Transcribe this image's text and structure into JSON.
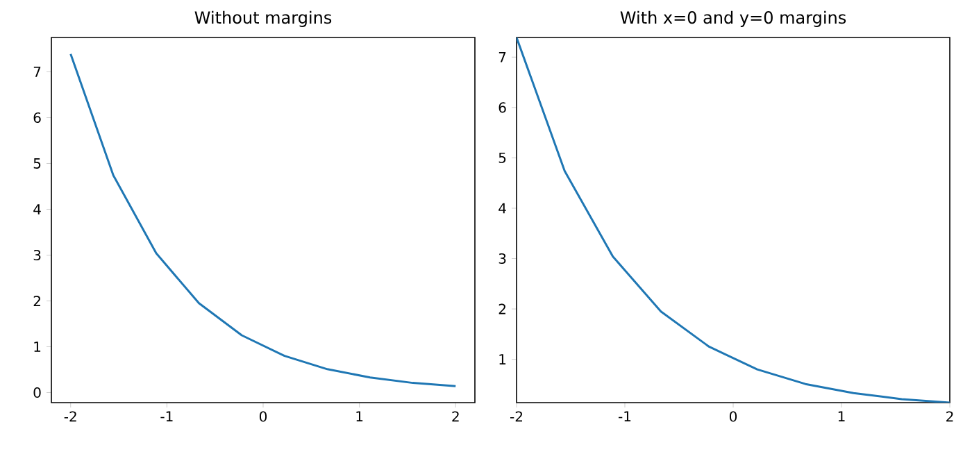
{
  "chart_data": [
    {
      "type": "line",
      "title": "Without margins",
      "color": "#1f77b4",
      "x": [
        -2,
        -1.556,
        -1.111,
        -0.667,
        -0.222,
        0.222,
        0.667,
        1.111,
        1.556,
        2
      ],
      "values": [
        7.39,
        4.74,
        3.04,
        1.95,
        1.25,
        0.8,
        0.51,
        0.33,
        0.21,
        0.14
      ],
      "xlim": [
        -2.2,
        2.2
      ],
      "ylim": [
        -0.22,
        7.75
      ],
      "xticks": [
        -2,
        -1,
        0,
        1,
        2
      ],
      "yticks": [
        0,
        1,
        2,
        3,
        4,
        5,
        6,
        7
      ]
    },
    {
      "type": "line",
      "title": "With x=0 and y=0 margins",
      "color": "#1f77b4",
      "x": [
        -2,
        -1.556,
        -1.111,
        -0.667,
        -0.222,
        0.222,
        0.667,
        1.111,
        1.556,
        2
      ],
      "values": [
        7.39,
        4.74,
        3.04,
        1.95,
        1.25,
        0.8,
        0.51,
        0.33,
        0.21,
        0.14
      ],
      "xlim": [
        -2,
        2
      ],
      "ylim": [
        0.14,
        7.39
      ],
      "xticks": [
        -2,
        -1,
        0,
        1,
        2
      ],
      "yticks": [
        1,
        2,
        3,
        4,
        5,
        6,
        7
      ]
    }
  ]
}
